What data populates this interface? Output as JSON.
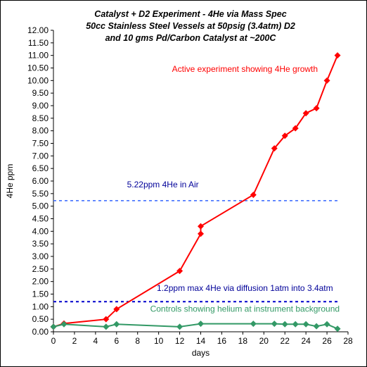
{
  "chart_data": {
    "type": "line",
    "title_lines": [
      "Catalyst + D2 Experiment - 4He via Mass Spec",
      "50cc Stainless Steel Vessels at 50psig (3.4atm) D2",
      "and 10 gms Pd/Carbon Catalyst at ~200C"
    ],
    "xlabel": "days",
    "ylabel": "4He ppm",
    "xlim": [
      0,
      28
    ],
    "ylim": [
      0,
      12
    ],
    "x_ticks": [
      "0",
      "2",
      "4",
      "6",
      "8",
      "10",
      "12",
      "14",
      "16",
      "18",
      "20",
      "22",
      "24",
      "26",
      "28"
    ],
    "y_ticks": [
      "0.00",
      "0.50",
      "1.00",
      "1.50",
      "2.00",
      "2.50",
      "3.00",
      "3.50",
      "4.00",
      "4.50",
      "5.00",
      "5.50",
      "6.00",
      "6.50",
      "7.00",
      "7.50",
      "8.00",
      "8.50",
      "9.00",
      "9.50",
      "10.00",
      "10.50",
      "11.00",
      "11.50",
      "12.00"
    ],
    "grid": false,
    "series": [
      {
        "color": "#FF0000",
        "marker": "diamond",
        "points": [
          {
            "x": 0,
            "y": 0.2
          },
          {
            "x": 1,
            "y": 0.33
          },
          {
            "x": 5,
            "y": 0.5
          },
          {
            "x": 6,
            "y": 0.9
          },
          {
            "x": 12,
            "y": 2.42
          },
          {
            "x": 14,
            "y": 3.9
          },
          {
            "x": 14,
            "y": 4.2
          },
          {
            "x": 19,
            "y": 5.45
          },
          {
            "x": 21,
            "y": 7.3
          },
          {
            "x": 22,
            "y": 7.8
          },
          {
            "x": 23,
            "y": 8.1
          },
          {
            "x": 24,
            "y": 8.7
          },
          {
            "x": 25,
            "y": 8.9
          },
          {
            "x": 26,
            "y": 10.0
          },
          {
            "x": 27,
            "y": 11.0
          }
        ]
      },
      {
        "color": "#339966",
        "marker": "diamond",
        "points": [
          {
            "x": 0,
            "y": 0.2
          },
          {
            "x": 1,
            "y": 0.3
          },
          {
            "x": 5,
            "y": 0.2
          },
          {
            "x": 6,
            "y": 0.3
          },
          {
            "x": 12,
            "y": 0.2
          },
          {
            "x": 14,
            "y": 0.32
          },
          {
            "x": 19,
            "y": 0.32
          },
          {
            "x": 21,
            "y": 0.32
          },
          {
            "x": 22,
            "y": 0.3
          },
          {
            "x": 23,
            "y": 0.3
          },
          {
            "x": 24,
            "y": 0.3
          },
          {
            "x": 25,
            "y": 0.22
          },
          {
            "x": 26,
            "y": 0.3
          },
          {
            "x": 27,
            "y": 0.12
          }
        ]
      }
    ],
    "reference_lines": [
      {
        "y": 5.22,
        "color": "#3366FF",
        "style": "dashed"
      },
      {
        "y": 1.2,
        "color": "#0000CC",
        "style": "dashed"
      }
    ],
    "annotations": [
      {
        "text": "Active experiment showing 4He growth",
        "color": "#FF0000",
        "x": 18.2,
        "y": 10.35
      },
      {
        "text": "5.22ppm 4He in Air",
        "color": "#000099",
        "x": 10.4,
        "y": 5.75
      },
      {
        "text": "1.2ppm max 4He via diffusion 1atm into 3.4atm",
        "color": "#000099",
        "x": 18.2,
        "y": 1.62
      },
      {
        "text": "Controls showing helium at instrument background",
        "color": "#339966",
        "x": 18.2,
        "y": 0.8
      }
    ]
  }
}
